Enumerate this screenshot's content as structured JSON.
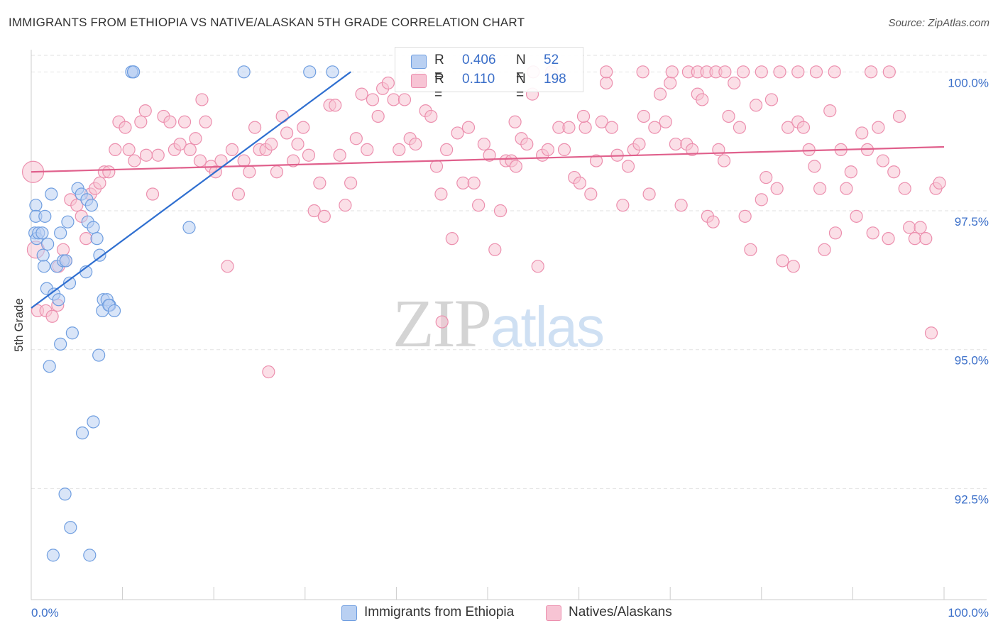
{
  "header": {
    "title": "IMMIGRANTS FROM ETHIOPIA VS NATIVE/ALASKAN 5TH GRADE CORRELATION CHART",
    "source": "Source: ZipAtlas.com"
  },
  "watermark": {
    "zip": "ZIP",
    "atlas": "atlas"
  },
  "legend_top": {
    "series1": {
      "r_label": "R =",
      "r_value": "0.406",
      "n_label": "N =",
      "n_value": "52"
    },
    "series2": {
      "r_label": "R =",
      "r_value": "0.110",
      "n_label": "N =",
      "n_value": "198"
    }
  },
  "legend_bottom": {
    "series1": "Immigrants from Ethiopia",
    "series2": "Natives/Alaskans"
  },
  "colors": {
    "blue_fill": "#b9d0f2",
    "blue_stroke": "#6f9ee0",
    "blue_line": "#2f6fd0",
    "pink_fill": "#f7c4d4",
    "pink_stroke": "#ec8fae",
    "pink_line": "#e0608c",
    "tick_label": "#3b6fc9",
    "grid": "#e2e2e2"
  },
  "chart_data": {
    "type": "scatter",
    "title": "IMMIGRANTS FROM ETHIOPIA VS NATIVE/ALASKAN 5TH GRADE CORRELATION CHART",
    "xlabel": "",
    "ylabel": "5th Grade",
    "xlim": [
      0,
      100
    ],
    "ylim": [
      90.5,
      100.4
    ],
    "x_tick_labels": [
      "0.0%",
      "100.0%"
    ],
    "y_ticks": [
      {
        "value": 100.0,
        "label": "100.0%"
      },
      {
        "value": 97.5,
        "label": "97.5%"
      },
      {
        "value": 95.0,
        "label": "95.0%"
      },
      {
        "value": 92.5,
        "label": "92.5%"
      }
    ],
    "series": [
      {
        "name": "Immigrants from Ethiopia",
        "color": "blue",
        "r": 0.406,
        "n": 52,
        "trend": {
          "x": [
            0,
            35
          ],
          "y": [
            95.75,
            100.0
          ]
        },
        "points": [
          [
            0.5,
            97.6
          ],
          [
            0.5,
            97.4
          ],
          [
            0.4,
            97.1
          ],
          [
            0.6,
            97.0
          ],
          [
            0.8,
            97.1
          ],
          [
            1.2,
            97.1
          ],
          [
            1.5,
            97.4
          ],
          [
            1.8,
            96.9
          ],
          [
            1.3,
            96.7
          ],
          [
            1.4,
            96.5
          ],
          [
            1.7,
            96.1
          ],
          [
            2.2,
            97.8
          ],
          [
            2.8,
            96.5
          ],
          [
            3.2,
            97.1
          ],
          [
            3.5,
            96.6
          ],
          [
            3.8,
            96.6
          ],
          [
            4.0,
            97.3
          ],
          [
            4.2,
            96.2
          ],
          [
            2.5,
            96.0
          ],
          [
            3.0,
            95.9
          ],
          [
            5.1,
            97.9
          ],
          [
            5.5,
            97.8
          ],
          [
            6.1,
            97.7
          ],
          [
            6.6,
            97.6
          ],
          [
            6.2,
            97.3
          ],
          [
            6.8,
            97.2
          ],
          [
            4.5,
            95.3
          ],
          [
            6.0,
            96.4
          ],
          [
            7.2,
            97.0
          ],
          [
            7.5,
            96.7
          ],
          [
            7.9,
            95.9
          ],
          [
            8.3,
            95.9
          ],
          [
            7.8,
            95.7
          ],
          [
            8.6,
            95.8
          ],
          [
            8.5,
            95.8
          ],
          [
            9.1,
            95.7
          ],
          [
            3.2,
            95.1
          ],
          [
            2.0,
            94.7
          ],
          [
            7.4,
            94.9
          ],
          [
            11.2,
            100.0
          ],
          [
            11.0,
            100.0
          ],
          [
            11.2,
            100.0
          ],
          [
            23.3,
            100.0
          ],
          [
            30.5,
            100.0
          ],
          [
            33.0,
            100.0
          ],
          [
            17.3,
            97.2
          ],
          [
            6.8,
            93.7
          ],
          [
            5.6,
            93.5
          ],
          [
            3.7,
            92.4
          ],
          [
            4.3,
            91.8
          ],
          [
            2.4,
            91.3
          ],
          [
            6.4,
            91.3
          ]
        ]
      },
      {
        "name": "Natives/Alaskans",
        "color": "pink",
        "r": 0.11,
        "n": 198,
        "trend": {
          "x": [
            0,
            100
          ],
          "y": [
            98.2,
            98.65
          ]
        },
        "points": [
          [
            0.2,
            98.2
          ],
          [
            0.5,
            96.8
          ],
          [
            0.7,
            95.7
          ],
          [
            1.6,
            95.7
          ],
          [
            2.3,
            95.6
          ],
          [
            2.9,
            95.8
          ],
          [
            3.0,
            96.5
          ],
          [
            3.5,
            96.8
          ],
          [
            3.8,
            96.6
          ],
          [
            4.3,
            97.7
          ],
          [
            5.0,
            97.6
          ],
          [
            5.5,
            97.4
          ],
          [
            6.0,
            97.0
          ],
          [
            6.5,
            97.8
          ],
          [
            7.0,
            97.9
          ],
          [
            7.5,
            98.0
          ],
          [
            8.0,
            98.2
          ],
          [
            8.5,
            98.2
          ],
          [
            9.2,
            98.6
          ],
          [
            9.6,
            99.1
          ],
          [
            10.3,
            99.0
          ],
          [
            10.7,
            98.6
          ],
          [
            11.3,
            98.4
          ],
          [
            12.0,
            99.1
          ],
          [
            12.6,
            98.5
          ],
          [
            13.3,
            97.8
          ],
          [
            13.9,
            98.5
          ],
          [
            14.5,
            99.2
          ],
          [
            15.2,
            99.1
          ],
          [
            15.7,
            98.6
          ],
          [
            16.3,
            98.7
          ],
          [
            16.8,
            99.1
          ],
          [
            17.4,
            98.6
          ],
          [
            18.0,
            98.8
          ],
          [
            18.5,
            98.4
          ],
          [
            19.1,
            99.1
          ],
          [
            19.7,
            98.3
          ],
          [
            20.2,
            98.2
          ],
          [
            20.8,
            98.4
          ],
          [
            21.5,
            96.5
          ],
          [
            22.0,
            98.6
          ],
          [
            22.7,
            97.8
          ],
          [
            23.3,
            98.4
          ],
          [
            23.9,
            98.2
          ],
          [
            24.5,
            99.0
          ],
          [
            25.0,
            98.6
          ],
          [
            25.7,
            98.6
          ],
          [
            26.3,
            98.7
          ],
          [
            26.9,
            98.2
          ],
          [
            27.5,
            99.2
          ],
          [
            28.0,
            98.9
          ],
          [
            28.7,
            98.4
          ],
          [
            29.2,
            98.7
          ],
          [
            29.8,
            99.0
          ],
          [
            30.4,
            98.5
          ],
          [
            31.0,
            97.5
          ],
          [
            31.6,
            98.0
          ],
          [
            32.1,
            97.4
          ],
          [
            32.7,
            99.4
          ],
          [
            33.3,
            99.4
          ],
          [
            33.8,
            98.5
          ],
          [
            34.4,
            97.6
          ],
          [
            35.0,
            98.0
          ],
          [
            35.6,
            98.8
          ],
          [
            36.2,
            99.6
          ],
          [
            36.8,
            98.6
          ],
          [
            37.4,
            99.5
          ],
          [
            38.0,
            99.2
          ],
          [
            38.5,
            99.7
          ],
          [
            39.1,
            99.8
          ],
          [
            39.7,
            99.5
          ],
          [
            40.3,
            98.6
          ],
          [
            40.9,
            99.5
          ],
          [
            41.5,
            98.8
          ],
          [
            42.1,
            98.7
          ],
          [
            42.6,
            99.9
          ],
          [
            43.2,
            99.3
          ],
          [
            43.8,
            99.2
          ],
          [
            44.4,
            98.3
          ],
          [
            44.9,
            97.8
          ],
          [
            45.5,
            98.6
          ],
          [
            46.1,
            97.0
          ],
          [
            46.7,
            98.9
          ],
          [
            47.3,
            98.0
          ],
          [
            47.9,
            99.0
          ],
          [
            48.5,
            98.0
          ],
          [
            49.0,
            97.6
          ],
          [
            49.6,
            98.7
          ],
          [
            50.2,
            98.5
          ],
          [
            50.8,
            96.8
          ],
          [
            51.4,
            97.5
          ],
          [
            52.0,
            98.4
          ],
          [
            52.6,
            98.4
          ],
          [
            53.1,
            98.3
          ],
          [
            53.7,
            98.8
          ],
          [
            54.3,
            98.7
          ],
          [
            54.9,
            99.6
          ],
          [
            55.5,
            96.5
          ],
          [
            56.0,
            98.5
          ],
          [
            56.6,
            98.6
          ],
          [
            57.2,
            99.9
          ],
          [
            57.8,
            99.0
          ],
          [
            58.4,
            98.6
          ],
          [
            58.9,
            99.0
          ],
          [
            59.5,
            98.1
          ],
          [
            60.1,
            98.0
          ],
          [
            60.7,
            99.0
          ],
          [
            61.3,
            97.8
          ],
          [
            61.9,
            98.4
          ],
          [
            62.5,
            99.1
          ],
          [
            63.0,
            99.8
          ],
          [
            63.6,
            99.0
          ],
          [
            64.2,
            98.5
          ],
          [
            64.8,
            97.6
          ],
          [
            65.4,
            98.3
          ],
          [
            66.0,
            98.6
          ],
          [
            66.6,
            98.7
          ],
          [
            67.1,
            99.2
          ],
          [
            67.7,
            97.8
          ],
          [
            68.3,
            99.0
          ],
          [
            68.9,
            99.6
          ],
          [
            69.5,
            99.1
          ],
          [
            70.0,
            99.8
          ],
          [
            70.6,
            98.7
          ],
          [
            71.2,
            97.6
          ],
          [
            71.8,
            98.7
          ],
          [
            72.4,
            98.6
          ],
          [
            73.0,
            99.6
          ],
          [
            73.5,
            99.5
          ],
          [
            74.1,
            97.4
          ],
          [
            74.7,
            97.3
          ],
          [
            75.3,
            98.6
          ],
          [
            75.9,
            98.4
          ],
          [
            76.4,
            99.2
          ],
          [
            77.0,
            99.8
          ],
          [
            77.6,
            99.0
          ],
          [
            78.2,
            97.4
          ],
          [
            78.8,
            96.8
          ],
          [
            79.4,
            99.4
          ],
          [
            80.0,
            97.7
          ],
          [
            80.5,
            98.1
          ],
          [
            81.1,
            99.5
          ],
          [
            81.7,
            97.9
          ],
          [
            82.3,
            96.6
          ],
          [
            82.9,
            99.0
          ],
          [
            83.5,
            96.5
          ],
          [
            84.0,
            99.1
          ],
          [
            84.6,
            99.0
          ],
          [
            85.2,
            98.6
          ],
          [
            85.8,
            98.3
          ],
          [
            86.4,
            97.9
          ],
          [
            86.9,
            96.8
          ],
          [
            87.5,
            99.3
          ],
          [
            88.1,
            97.1
          ],
          [
            88.7,
            98.6
          ],
          [
            89.3,
            97.9
          ],
          [
            89.8,
            98.2
          ],
          [
            90.4,
            97.4
          ],
          [
            91.0,
            98.9
          ],
          [
            91.6,
            98.6
          ],
          [
            92.2,
            97.1
          ],
          [
            92.8,
            99.0
          ],
          [
            93.3,
            98.4
          ],
          [
            93.9,
            97.0
          ],
          [
            94.5,
            98.2
          ],
          [
            95.1,
            99.2
          ],
          [
            95.7,
            97.9
          ],
          [
            96.2,
            97.2
          ],
          [
            96.8,
            97.0
          ],
          [
            97.4,
            97.2
          ],
          [
            98.0,
            97.0
          ],
          [
            98.6,
            95.3
          ],
          [
            99.1,
            97.9
          ],
          [
            99.5,
            98.0
          ],
          [
            12.5,
            99.3
          ],
          [
            18.7,
            99.5
          ],
          [
            26.0,
            94.6
          ],
          [
            45.0,
            95.5
          ],
          [
            53.0,
            99.1
          ],
          [
            60.5,
            99.2
          ],
          [
            67.0,
            100.0
          ],
          [
            70.2,
            100.0
          ],
          [
            72.0,
            100.0
          ],
          [
            73.0,
            100.0
          ],
          [
            74.0,
            100.0
          ],
          [
            75.0,
            100.0
          ],
          [
            76.0,
            100.0
          ],
          [
            78.0,
            100.0
          ],
          [
            80.0,
            100.0
          ],
          [
            82.0,
            100.0
          ],
          [
            84.0,
            100.0
          ],
          [
            86.0,
            100.0
          ],
          [
            88.0,
            100.0
          ],
          [
            92.0,
            100.0
          ],
          [
            94.0,
            100.0
          ],
          [
            57.0,
            100.0
          ],
          [
            63.0,
            100.0
          ],
          [
            55.0,
            100.0
          ]
        ]
      }
    ],
    "grid": true,
    "legend": "top-center"
  }
}
